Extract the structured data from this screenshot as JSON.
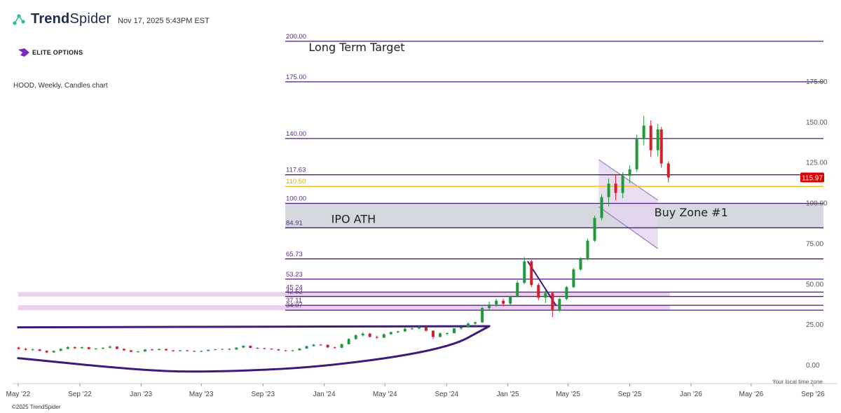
{
  "header": {
    "brand_prefix": "Trend",
    "brand_suffix": "Spider",
    "timestamp": "Nov 17, 2025 5:43PM EST",
    "sub_brand": "ELITE OPTIONS",
    "chart_subtitle": "HOOD, Weekly, Candles chart"
  },
  "footer": {
    "copyright": "©2025 TrendSpider",
    "timezone_note": "Your local time zone"
  },
  "colors": {
    "level_line": "#4b1a7a",
    "level_label": "#5b2a8a",
    "yellow_level": "#f2c100",
    "zone_gray": "#d5d8de",
    "zone_pink": "#e8c8ea",
    "channel_fill": "#e3d6ee",
    "up_candle": "#1f9a3a",
    "down_candle": "#d0202c",
    "price_badge": "#e00000"
  },
  "chart_data": {
    "type": "candlestick",
    "title": "HOOD, Weekly, Candles chart",
    "ylim": [
      -10,
      200
    ],
    "y_ticks": [
      0,
      25,
      50,
      75,
      100,
      125,
      150,
      175
    ],
    "y_tick_labels": [
      "0.00",
      "25.00",
      "50.00",
      "75.00",
      "100.00",
      "125.00",
      "150.00",
      "175.00"
    ],
    "x_ticks": [
      {
        "label": "May '22",
        "date": "2022-05-01"
      },
      {
        "label": "Sep '22",
        "date": "2022-09-01"
      },
      {
        "label": "Jan '23",
        "date": "2023-01-01"
      },
      {
        "label": "May '23",
        "date": "2023-05-01"
      },
      {
        "label": "Sep '23",
        "date": "2023-09-01"
      },
      {
        "label": "Jan '24",
        "date": "2024-01-01"
      },
      {
        "label": "May '24",
        "date": "2024-05-01"
      },
      {
        "label": "Sep '24",
        "date": "2024-09-01"
      },
      {
        "label": "Jan '25",
        "date": "2025-01-01"
      },
      {
        "label": "May '25",
        "date": "2025-05-01"
      },
      {
        "label": "Sep '25",
        "date": "2025-09-01"
      },
      {
        "label": "Jan '26",
        "date": "2026-01-01"
      },
      {
        "label": "May '26",
        "date": "2026-05-01"
      },
      {
        "label": "Sep '26",
        "date": "2026-09-01"
      }
    ],
    "last_price": 115.97,
    "last_price_label": "115.97",
    "levels": [
      {
        "label": "200.00",
        "value": 200.0,
        "style": "purple"
      },
      {
        "label": "175.00",
        "value": 175.0,
        "style": "purple"
      },
      {
        "label": "140.00",
        "value": 140.0,
        "style": "purple"
      },
      {
        "label": "117.63",
        "value": 117.63,
        "style": "purple"
      },
      {
        "label": "110.50",
        "value": 110.5,
        "style": "yellow"
      },
      {
        "label": "100.00",
        "value": 100.0,
        "style": "purple"
      },
      {
        "label": "84.91",
        "value": 84.91,
        "style": "purple"
      },
      {
        "label": "65.73",
        "value": 65.73,
        "style": "purple"
      },
      {
        "label": "53.23",
        "value": 53.23,
        "style": "purple"
      },
      {
        "label": "45.24",
        "value": 45.24,
        "style": "purple"
      },
      {
        "label": "42.52",
        "value": 42.52,
        "style": "purple"
      },
      {
        "label": "37.11",
        "value": 37.11,
        "style": "purple"
      },
      {
        "label": "34.07",
        "value": 34.07,
        "style": "purple"
      }
    ],
    "zones": [
      {
        "low": 84.91,
        "high": 100.0,
        "start_date": "2022-05-01",
        "style": "gray"
      },
      {
        "low": 42.52,
        "high": 45.24,
        "start_date": "2022-05-01",
        "end_date": "2025-11-20",
        "style": "pink"
      },
      {
        "low": 34.07,
        "high": 37.11,
        "start_date": "2022-05-01",
        "end_date": "2025-11-20",
        "style": "pink"
      }
    ],
    "annotations": [
      {
        "text": "Long Term Target",
        "date": "2023-12-01",
        "value": 194
      },
      {
        "text": "IPO ATH",
        "date": "2024-01-15",
        "value": 88
      },
      {
        "text": "Buy Zone #1",
        "date": "2025-10-20",
        "value": 92
      }
    ],
    "trendlines": [
      {
        "points": [
          [
            "2022-05-01",
            23.5
          ],
          [
            "2024-11-25",
            24.2
          ]
        ],
        "name": "horizontal support"
      },
      {
        "points": [
          [
            "2022-05-01",
            4.5
          ],
          [
            "2023-01-15",
            -3.5
          ],
          [
            "2023-06-01",
            -4.0
          ],
          [
            "2024-01-01",
            -1.0
          ],
          [
            "2024-09-01",
            10
          ],
          [
            "2024-11-25",
            24.2
          ]
        ],
        "name": "rounded base curve"
      },
      {
        "points": [
          [
            "2025-02-10",
            64
          ],
          [
            "2025-04-07",
            37
          ]
        ],
        "name": "down trendline"
      }
    ],
    "channel": {
      "upper": [
        [
          "2025-07-01",
          127
        ],
        [
          "2025-10-27",
          102
        ]
      ],
      "lower": [
        [
          "2025-07-01",
          98
        ],
        [
          "2025-10-27",
          72
        ]
      ]
    },
    "candles": [
      [
        "2022-05-02",
        11.0,
        11.5,
        9.8,
        10.2
      ],
      [
        "2022-05-16",
        10.2,
        10.8,
        9.2,
        9.6
      ],
      [
        "2022-05-30",
        9.6,
        10.4,
        9.1,
        9.9
      ],
      [
        "2022-06-13",
        9.9,
        10.1,
        8.7,
        9.0
      ],
      [
        "2022-06-27",
        9.0,
        9.3,
        7.6,
        8.0
      ],
      [
        "2022-07-11",
        8.0,
        9.2,
        7.8,
        9.0
      ],
      [
        "2022-07-25",
        9.0,
        10.6,
        8.8,
        10.2
      ],
      [
        "2022-08-08",
        10.2,
        11.8,
        9.9,
        11.3
      ],
      [
        "2022-08-22",
        11.3,
        11.6,
        10.2,
        10.6
      ],
      [
        "2022-09-05",
        10.6,
        11.6,
        10.3,
        11.2
      ],
      [
        "2022-09-19",
        11.2,
        11.5,
        9.8,
        10.1
      ],
      [
        "2022-10-03",
        10.1,
        10.7,
        9.7,
        10.4
      ],
      [
        "2022-10-17",
        10.4,
        11.1,
        9.8,
        10.9
      ],
      [
        "2022-10-31",
        10.9,
        12.4,
        10.5,
        11.6
      ],
      [
        "2022-11-14",
        11.6,
        11.8,
        9.9,
        10.2
      ],
      [
        "2022-11-28",
        10.2,
        10.4,
        9.0,
        9.3
      ],
      [
        "2022-12-12",
        9.3,
        9.5,
        8.1,
        8.4
      ],
      [
        "2022-12-26",
        8.4,
        8.9,
        7.9,
        8.6
      ],
      [
        "2023-01-09",
        8.6,
        10.1,
        8.4,
        9.8
      ],
      [
        "2023-01-23",
        9.8,
        10.3,
        9.2,
        9.5
      ],
      [
        "2023-02-06",
        9.5,
        10.4,
        9.3,
        10.1
      ],
      [
        "2023-02-20",
        10.1,
        10.3,
        9.0,
        9.3
      ],
      [
        "2023-03-06",
        9.3,
        9.5,
        8.4,
        8.8
      ],
      [
        "2023-03-20",
        8.8,
        9.5,
        8.6,
        9.3
      ],
      [
        "2023-04-03",
        9.3,
        9.6,
        8.6,
        8.9
      ],
      [
        "2023-04-17",
        8.9,
        9.1,
        8.3,
        8.6
      ],
      [
        "2023-05-01",
        8.6,
        9.1,
        8.2,
        8.9
      ],
      [
        "2023-05-15",
        8.9,
        9.8,
        8.7,
        9.6
      ],
      [
        "2023-05-29",
        9.6,
        10.2,
        9.3,
        9.9
      ],
      [
        "2023-06-12",
        9.9,
        10.4,
        9.6,
        10.1
      ],
      [
        "2023-06-26",
        10.1,
        10.5,
        9.6,
        9.8
      ],
      [
        "2023-07-10",
        9.8,
        11.2,
        9.7,
        11.0
      ],
      [
        "2023-07-24",
        11.0,
        12.5,
        10.8,
        12.1
      ],
      [
        "2023-08-07",
        12.1,
        12.3,
        10.6,
        10.8
      ],
      [
        "2023-08-21",
        10.8,
        11.1,
        10.2,
        10.6
      ],
      [
        "2023-09-04",
        10.6,
        10.9,
        9.9,
        10.3
      ],
      [
        "2023-09-18",
        10.3,
        10.5,
        9.6,
        9.9
      ],
      [
        "2023-10-02",
        9.9,
        10.2,
        9.0,
        9.3
      ],
      [
        "2023-10-16",
        9.3,
        9.6,
        8.7,
        8.9
      ],
      [
        "2023-10-30",
        8.9,
        9.5,
        8.6,
        9.3
      ],
      [
        "2023-11-13",
        9.3,
        10.6,
        9.2,
        10.4
      ],
      [
        "2023-11-27",
        10.4,
        12.1,
        10.2,
        11.9
      ],
      [
        "2023-12-11",
        11.9,
        13.2,
        11.6,
        12.8
      ],
      [
        "2023-12-25",
        12.8,
        13.1,
        12.2,
        12.7
      ],
      [
        "2024-01-08",
        12.7,
        12.9,
        10.8,
        11.1
      ],
      [
        "2024-01-22",
        11.1,
        11.6,
        10.4,
        10.9
      ],
      [
        "2024-02-05",
        10.9,
        13.4,
        10.7,
        13.1
      ],
      [
        "2024-02-19",
        13.1,
        16.8,
        12.9,
        16.3
      ],
      [
        "2024-03-04",
        16.3,
        19.2,
        15.8,
        18.6
      ],
      [
        "2024-03-18",
        18.6,
        20.5,
        17.8,
        19.6
      ],
      [
        "2024-04-01",
        19.6,
        20.1,
        17.2,
        17.6
      ],
      [
        "2024-04-15",
        17.6,
        18.4,
        16.3,
        17.1
      ],
      [
        "2024-04-29",
        17.1,
        19.8,
        16.9,
        19.2
      ],
      [
        "2024-05-13",
        19.2,
        21.0,
        18.8,
        20.5
      ],
      [
        "2024-05-27",
        20.5,
        21.4,
        19.8,
        21.0
      ],
      [
        "2024-06-10",
        21.0,
        23.3,
        20.6,
        22.6
      ],
      [
        "2024-06-24",
        22.6,
        23.4,
        21.8,
        22.8
      ],
      [
        "2024-07-08",
        22.8,
        24.4,
        22.2,
        23.6
      ],
      [
        "2024-07-22",
        23.6,
        24.2,
        21.0,
        21.4
      ],
      [
        "2024-08-05",
        21.4,
        21.6,
        16.4,
        17.6
      ],
      [
        "2024-08-19",
        17.6,
        20.4,
        17.2,
        19.8
      ],
      [
        "2024-09-02",
        19.8,
        20.3,
        18.6,
        19.9
      ],
      [
        "2024-09-16",
        19.9,
        23.1,
        19.6,
        22.8
      ],
      [
        "2024-09-30",
        22.8,
        24.1,
        22.0,
        23.6
      ],
      [
        "2024-10-14",
        23.6,
        26.6,
        23.1,
        25.8
      ],
      [
        "2024-10-28",
        25.8,
        27.2,
        24.2,
        26.6
      ],
      [
        "2024-11-11",
        26.6,
        36.2,
        26.0,
        35.4
      ],
      [
        "2024-11-25",
        35.4,
        39.3,
        33.6,
        37.6
      ],
      [
        "2024-12-09",
        37.6,
        41.1,
        36.2,
        39.9
      ],
      [
        "2024-12-23",
        39.9,
        41.2,
        36.4,
        38.1
      ],
      [
        "2025-01-06",
        38.1,
        43.0,
        37.2,
        42.6
      ],
      [
        "2025-01-20",
        42.6,
        52.4,
        42.0,
        51.0
      ],
      [
        "2025-02-03",
        51.0,
        66.9,
        50.2,
        64.2
      ],
      [
        "2025-02-17",
        64.2,
        65.1,
        48.4,
        49.6
      ],
      [
        "2025-03-03",
        49.6,
        50.8,
        40.2,
        41.8
      ],
      [
        "2025-03-17",
        41.8,
        46.2,
        38.4,
        44.6
      ],
      [
        "2025-03-31",
        44.6,
        45.1,
        29.7,
        33.8
      ],
      [
        "2025-04-14",
        33.8,
        41.8,
        33.0,
        41.0
      ],
      [
        "2025-04-28",
        41.0,
        49.0,
        40.2,
        48.3
      ],
      [
        "2025-05-12",
        48.3,
        60.1,
        47.8,
        59.2
      ],
      [
        "2025-05-26",
        59.2,
        66.8,
        58.4,
        65.6
      ],
      [
        "2025-06-09",
        65.6,
        78.2,
        64.8,
        77.0
      ],
      [
        "2025-06-23",
        77.0,
        92.4,
        76.2,
        91.0
      ],
      [
        "2025-07-07",
        91.0,
        105.6,
        89.6,
        103.8
      ],
      [
        "2025-07-21",
        103.8,
        115.4,
        98.2,
        112.2
      ],
      [
        "2025-08-04",
        112.2,
        117.4,
        101.8,
        106.4
      ],
      [
        "2025-08-18",
        106.4,
        119.2,
        103.2,
        117.0
      ],
      [
        "2025-09-01",
        117.0,
        123.4,
        112.4,
        121.0
      ],
      [
        "2025-09-15",
        121.0,
        142.4,
        119.6,
        139.6
      ],
      [
        "2025-09-29",
        139.6,
        153.9,
        136.0,
        148.0
      ],
      [
        "2025-10-13",
        148.0,
        151.2,
        128.6,
        132.8
      ],
      [
        "2025-10-27",
        132.8,
        149.0,
        129.0,
        145.6
      ],
      [
        "2025-11-03",
        145.6,
        147.2,
        122.0,
        124.6
      ],
      [
        "2025-11-17",
        124.6,
        125.8,
        112.9,
        115.97
      ]
    ]
  }
}
